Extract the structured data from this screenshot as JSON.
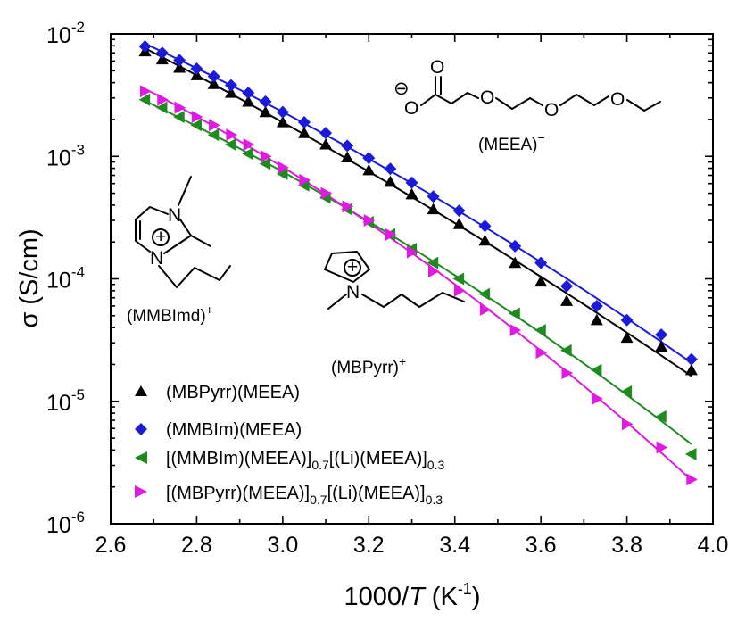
{
  "chart_data": {
    "type": "scatter",
    "xlabel_prefix": "1000/",
    "xlabel_var": "T",
    "xlabel_unit": "(K",
    "xlabel_unit_exp": "-1",
    "xlabel_unit_close": ")",
    "ylabel": "σ (S/cm)",
    "x_ticks": [
      "2.6",
      "2.8",
      "3.0",
      "3.2",
      "3.4",
      "3.6",
      "3.8",
      "4.0"
    ],
    "y_ticks": [
      {
        "base": "10",
        "exp": "-2"
      },
      {
        "base": "10",
        "exp": "-3"
      },
      {
        "base": "10",
        "exp": "-4"
      },
      {
        "base": "10",
        "exp": "-5"
      },
      {
        "base": "10",
        "exp": "-6"
      }
    ],
    "xlim": [
      2.6,
      4.0
    ],
    "ylim": [
      1e-06,
      0.01
    ],
    "yscale": "log",
    "legend_position": "bottom-left",
    "series": [
      {
        "name": "(MBPyrr)(MEEA)",
        "marker": "triangle-up",
        "color": "#000000",
        "x": [
          2.68,
          2.72,
          2.76,
          2.8,
          2.84,
          2.88,
          2.92,
          2.96,
          3.0,
          3.05,
          3.1,
          3.15,
          3.2,
          3.25,
          3.3,
          3.35,
          3.41,
          3.47,
          3.54,
          3.6,
          3.66,
          3.73,
          3.8,
          3.88,
          3.95
        ],
        "y": [
          0.0072,
          0.0062,
          0.0053,
          0.0046,
          0.0039,
          0.0033,
          0.0028,
          0.0023,
          0.0019,
          0.00155,
          0.00125,
          0.00098,
          0.00077,
          0.00062,
          0.00049,
          0.00037,
          0.00028,
          0.000205,
          0.000135,
          9.5e-05,
          6.6e-05,
          4.6e-05,
          3.3e-05,
          2.8e-05,
          1.8e-05
        ]
      },
      {
        "name": "(MMBIm)(MEEA)",
        "marker": "diamond",
        "color": "#1a1adb",
        "x": [
          2.68,
          2.72,
          2.76,
          2.8,
          2.84,
          2.88,
          2.92,
          2.96,
          3.0,
          3.05,
          3.1,
          3.15,
          3.2,
          3.25,
          3.3,
          3.35,
          3.41,
          3.47,
          3.54,
          3.6,
          3.66,
          3.73,
          3.8,
          3.88,
          3.95
        ],
        "y": [
          0.0079,
          0.007,
          0.0061,
          0.0052,
          0.0045,
          0.0038,
          0.0033,
          0.0028,
          0.0023,
          0.0019,
          0.00155,
          0.00122,
          0.00097,
          0.00079,
          0.00061,
          0.00047,
          0.00036,
          0.00027,
          0.000185,
          0.000135,
          8.7e-05,
          6e-05,
          4.6e-05,
          3.5e-05,
          2.2e-05
        ]
      },
      {
        "name_prefix": "[(MMBIm)(MEEA)]",
        "name_sub1": "0.7",
        "name_mid": "[(Li)(MEEA)]",
        "name_sub2": "0.3",
        "marker": "triangle-left",
        "color": "#1f8a1f",
        "x": [
          2.68,
          2.72,
          2.76,
          2.8,
          2.84,
          2.88,
          2.92,
          2.96,
          3.0,
          3.05,
          3.1,
          3.15,
          3.2,
          3.25,
          3.3,
          3.35,
          3.41,
          3.47,
          3.54,
          3.6,
          3.66,
          3.73,
          3.8,
          3.88,
          3.95
        ],
        "y": [
          0.0029,
          0.0025,
          0.0021,
          0.0018,
          0.0015,
          0.00125,
          0.00105,
          0.00087,
          0.00072,
          0.00058,
          0.00046,
          0.00037,
          0.00029,
          0.00023,
          0.000175,
          0.000135,
          0.0001,
          7.5e-05,
          5.2e-05,
          3.8e-05,
          2.6e-05,
          1.8e-05,
          1.2e-05,
          7.5e-06,
          3.7e-06
        ]
      },
      {
        "name_prefix": "[(MBPyrr)(MEEA)]",
        "name_sub1": "0.7",
        "name_mid": "[(Li)(MEEA)]",
        "name_sub2": "0.3",
        "marker": "triangle-right",
        "color": "#e11ae1",
        "x": [
          2.68,
          2.72,
          2.76,
          2.8,
          2.84,
          2.88,
          2.92,
          2.96,
          3.0,
          3.05,
          3.1,
          3.15,
          3.2,
          3.25,
          3.3,
          3.35,
          3.41,
          3.47,
          3.54,
          3.6,
          3.66,
          3.73,
          3.8,
          3.88,
          3.95
        ],
        "y": [
          0.0034,
          0.0029,
          0.0025,
          0.0021,
          0.0018,
          0.0015,
          0.00125,
          0.001,
          0.00081,
          0.00064,
          0.0005,
          0.00039,
          0.0003,
          0.00023,
          0.000165,
          0.000115,
          8e-05,
          5.6e-05,
          3.8e-05,
          2.5e-05,
          1.7e-05,
          1.05e-05,
          6.5e-06,
          4.2e-06,
          2.3e-06
        ]
      }
    ],
    "structures": {
      "anion_label": "(MEEA)",
      "anion_charge": "−",
      "anion_O": "O",
      "anion_neg_charge": "⊖",
      "imidazolium_label": "(MMBImd)",
      "imidazolium_charge": "+",
      "imidazolium_N": "N",
      "pyrrolidinium_label": "(MBPyrr)",
      "pyrrolidinium_charge": "+",
      "pyrrolidinium_N": "N",
      "cation_plus": "⊕"
    }
  }
}
